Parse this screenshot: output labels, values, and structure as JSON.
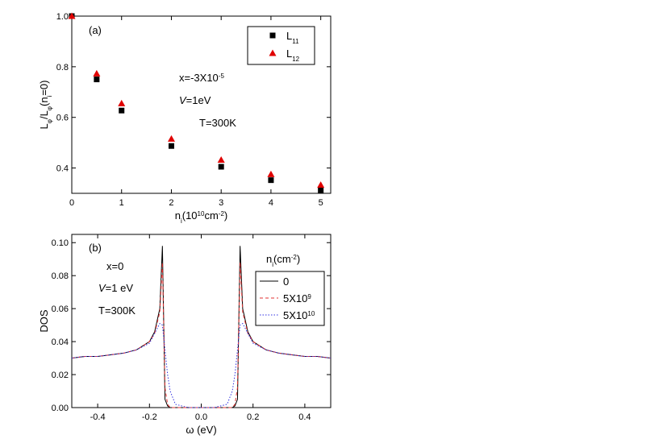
{
  "chart_data": [
    {
      "type": "scatter",
      "panel": "(a)",
      "x_label": [
        {
          "t": "n"
        },
        {
          "t": "i",
          "s": "sub"
        },
        {
          "t": "(10"
        },
        {
          "t": "10",
          "s": "sup"
        },
        {
          "t": "cm"
        },
        {
          "t": "-2",
          "s": "sup"
        },
        {
          "t": ")"
        }
      ],
      "y_label": [
        {
          "t": "L"
        },
        {
          "t": "φ",
          "s": "sub"
        },
        {
          "t": "/L"
        },
        {
          "t": "φ",
          "s": "sub"
        },
        {
          "t": "(n"
        },
        {
          "t": "i",
          "s": "sub"
        },
        {
          "t": "=0)"
        }
      ],
      "annotations": [
        [
          {
            "t": "x=-3X10"
          },
          {
            "t": "-5",
            "s": "sup"
          }
        ],
        [
          {
            "t": "V",
            "i": true
          },
          {
            "t": "=1eV"
          }
        ],
        [
          {
            "t": "T=300K"
          }
        ]
      ],
      "x": [
        0,
        0.5,
        1,
        2,
        3,
        4,
        5
      ],
      "series": [
        {
          "name": [
            {
              "t": "L"
            },
            {
              "t": "11",
              "s": "sub"
            }
          ],
          "color": "#000000",
          "marker": "square",
          "values": [
            1.0,
            0.75,
            0.627,
            0.487,
            0.405,
            0.352,
            0.312
          ]
        },
        {
          "name": [
            {
              "t": "L"
            },
            {
              "t": "12",
              "s": "sub"
            }
          ],
          "color": "#e00000",
          "marker": "triangle",
          "values": [
            1.0,
            0.773,
            0.655,
            0.515,
            0.432,
            0.375,
            0.333
          ]
        }
      ],
      "xlim": [
        0,
        5.2
      ],
      "xticks": [
        0,
        1,
        2,
        3,
        4,
        5
      ],
      "ylim": [
        0.3,
        1.0
      ],
      "yticks": [
        0.4,
        0.6,
        0.8,
        {
          "value": 1,
          "label": "1.0"
        }
      ]
    },
    {
      "type": "line",
      "panel": "(b)",
      "x_label": [
        {
          "t": "ω (eV)"
        }
      ],
      "y_label": [
        {
          "t": "DOS"
        }
      ],
      "annotations": [
        [
          {
            "t": "x=0"
          }
        ],
        [
          {
            "t": "V",
            "i": true
          },
          {
            "t": "=1 eV"
          }
        ],
        [
          {
            "t": "T=300K"
          }
        ]
      ],
      "legend_title": [
        {
          "t": "n"
        },
        {
          "t": "i",
          "s": "sub"
        },
        {
          "t": "(cm"
        },
        {
          "t": "-2",
          "s": "sup"
        },
        {
          "t": ")"
        }
      ],
      "x": [
        -0.5,
        -0.45,
        -0.4,
        -0.35,
        -0.3,
        -0.25,
        -0.2,
        -0.18,
        -0.16,
        -0.15,
        -0.14,
        -0.13,
        -0.12,
        -0.1,
        -0.05,
        0,
        0.05,
        0.1,
        0.12,
        0.13,
        0.14,
        0.15,
        0.16,
        0.18,
        0.2,
        0.25,
        0.3,
        0.35,
        0.4,
        0.45,
        0.5
      ],
      "series": [
        {
          "name": [
            {
              "t": "0"
            }
          ],
          "color": "#000000",
          "dash": "none",
          "values": [
            0.03,
            0.031,
            0.031,
            0.032,
            0.033,
            0.035,
            0.04,
            0.046,
            0.06,
            0.098,
            0.005,
            0.001,
            0,
            0,
            0,
            0,
            0,
            0,
            0,
            0.001,
            0.005,
            0.098,
            0.06,
            0.046,
            0.04,
            0.035,
            0.033,
            0.032,
            0.031,
            0.031,
            0.03
          ]
        },
        {
          "name": [
            {
              "t": "5X10"
            },
            {
              "t": "9",
              "s": "sup"
            }
          ],
          "color": "#e03030",
          "dash": "4 3",
          "values": [
            0.03,
            0.031,
            0.031,
            0.032,
            0.033,
            0.035,
            0.04,
            0.045,
            0.058,
            0.088,
            0.012,
            0.002,
            0,
            0,
            0,
            0,
            0,
            0,
            0,
            0.002,
            0.012,
            0.088,
            0.058,
            0.045,
            0.04,
            0.035,
            0.033,
            0.032,
            0.031,
            0.031,
            0.03
          ]
        },
        {
          "name": [
            {
              "t": "5X10"
            },
            {
              "t": "10",
              "s": "sup"
            }
          ],
          "color": "#3030e0",
          "dash": "1.5 2",
          "values": [
            0.03,
            0.031,
            0.031,
            0.032,
            0.033,
            0.035,
            0.039,
            0.045,
            0.051,
            0.05,
            0.035,
            0.02,
            0.01,
            0.002,
            0,
            0,
            0,
            0.002,
            0.01,
            0.02,
            0.035,
            0.05,
            0.051,
            0.045,
            0.039,
            0.035,
            0.033,
            0.032,
            0.031,
            0.031,
            0.03
          ]
        }
      ],
      "xlim": [
        -0.5,
        0.5
      ],
      "xticks": [
        -0.4,
        -0.2,
        {
          "value": 0,
          "label": "0.0"
        },
        0.2,
        0.4
      ],
      "ylim": [
        0,
        0.105
      ],
      "yticks": [
        {
          "value": 0,
          "label": "0.00"
        },
        {
          "value": 0.02,
          "label": "0.02"
        },
        {
          "value": 0.04,
          "label": "0.04"
        },
        {
          "value": 0.06,
          "label": "0.06"
        },
        {
          "value": 0.08,
          "label": "0.08"
        },
        {
          "value": 0.1,
          "label": "0.10"
        }
      ]
    }
  ]
}
